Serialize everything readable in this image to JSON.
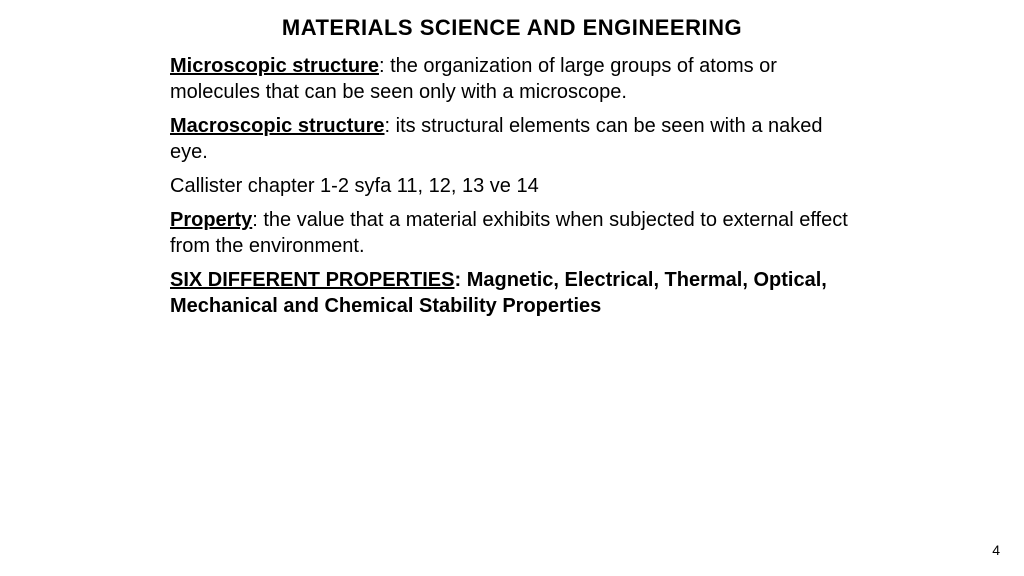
{
  "title": "MATERIALS SCIENCE AND ENGINEERING",
  "para1": {
    "term": "Microscopic structure",
    "body": ": the organization of large groups of atoms or molecules that can be seen only with a microscope."
  },
  "para2": {
    "term": "Macroscopic structure",
    "body": ": its structural elements can be seen with a naked eye."
  },
  "para3": "Callister chapter 1-2 syfa 11, 12, 13 ve 14",
  "para4": {
    "term": "Property",
    "body": ": the value that a material exhibits when subjected to external effect from the environment."
  },
  "para5": {
    "term": "SIX DIFFERENT PROPERTIES",
    "body": ": Magnetic, Electrical, Thermal, Optical, Mechanical and Chemical Stability Properties"
  },
  "pageNumber": "4",
  "colors": {
    "background": "#ffffff",
    "text": "#000000"
  },
  "typography": {
    "title_fontsize": 22,
    "body_fontsize": 20,
    "page_number_fontsize": 14,
    "font_family": "Arial"
  }
}
